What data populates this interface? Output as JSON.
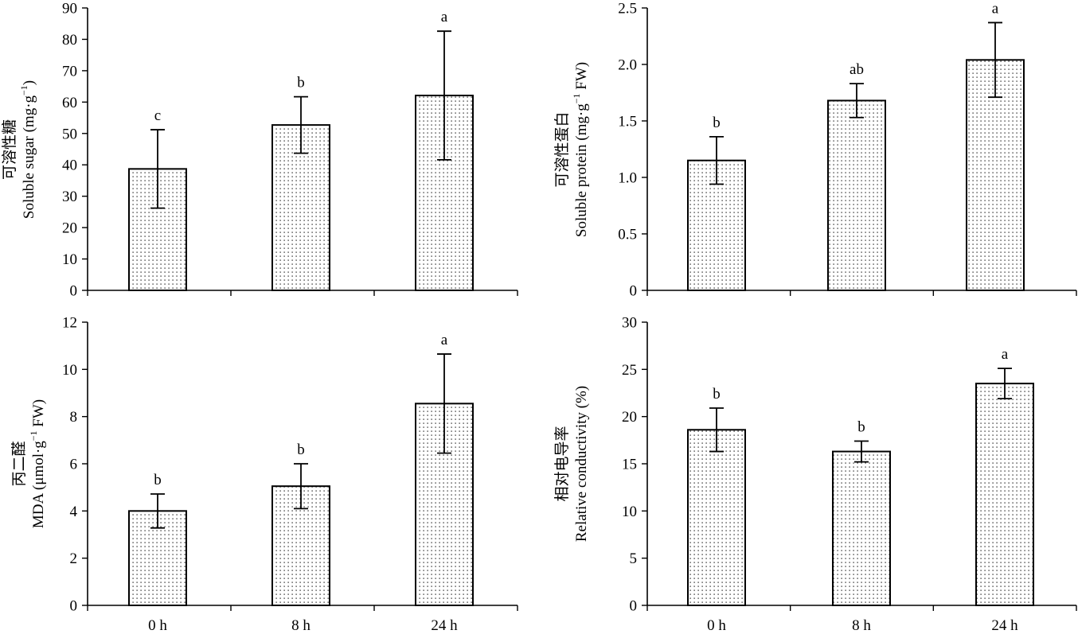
{
  "chart_data": [
    {
      "type": "bar",
      "categories": [
        "0 h",
        "8 h",
        "24 h"
      ],
      "values": [
        38.7,
        52.7,
        62.1
      ],
      "errors": [
        12.5,
        9.0,
        20.5
      ],
      "significance": [
        "c",
        "b",
        "a"
      ],
      "ylabel_cn": "可溶性糖",
      "ylabel_en": "Soluble sugar (mg·g",
      "ylabel_sup": "−1",
      "ylabel_tail": ")",
      "ylim": [
        0,
        90
      ],
      "yticks": [
        "0",
        "10",
        "20",
        "30",
        "40",
        "50",
        "60",
        "70",
        "80",
        "90"
      ],
      "show_categories": false
    },
    {
      "type": "bar",
      "categories": [
        "0 h",
        "8 h",
        "24 h"
      ],
      "values": [
        1.15,
        1.68,
        2.04
      ],
      "errors": [
        0.21,
        0.15,
        0.33
      ],
      "significance": [
        "b",
        "ab",
        "a"
      ],
      "ylabel_cn": "可溶性蛋白",
      "ylabel_en": "Soluble protein (mg·g",
      "ylabel_sup": "−1",
      "ylabel_tail": " FW)",
      "ylim": [
        0,
        2.5
      ],
      "yticks": [
        "0",
        "0.5",
        "1.0",
        "1.5",
        "2.0",
        "2.5"
      ],
      "show_categories": false
    },
    {
      "type": "bar",
      "categories": [
        "0 h",
        "8 h",
        "24 h"
      ],
      "values": [
        4.0,
        5.05,
        8.55
      ],
      "errors": [
        0.72,
        0.95,
        2.1
      ],
      "significance": [
        "b",
        "b",
        "a"
      ],
      "ylabel_cn": "丙二醛",
      "ylabel_en": "MDA (μmol·g",
      "ylabel_sup": "−1",
      "ylabel_tail": " FW)",
      "ylim": [
        0,
        12
      ],
      "yticks": [
        "0",
        "2",
        "4",
        "6",
        "8",
        "10",
        "12"
      ],
      "show_categories": true
    },
    {
      "type": "bar",
      "categories": [
        "0 h",
        "8 h",
        "24 h"
      ],
      "values": [
        18.6,
        16.3,
        23.5
      ],
      "errors": [
        2.3,
        1.1,
        1.6
      ],
      "significance": [
        "b",
        "b",
        "a"
      ],
      "ylabel_cn": "相对电导率",
      "ylabel_en": "Relative conductivity (%)",
      "ylabel_sup": "",
      "ylabel_tail": "",
      "ylim": [
        0,
        30
      ],
      "yticks": [
        "0",
        "5",
        "10",
        "15",
        "20",
        "25",
        "30"
      ],
      "show_categories": true
    }
  ]
}
